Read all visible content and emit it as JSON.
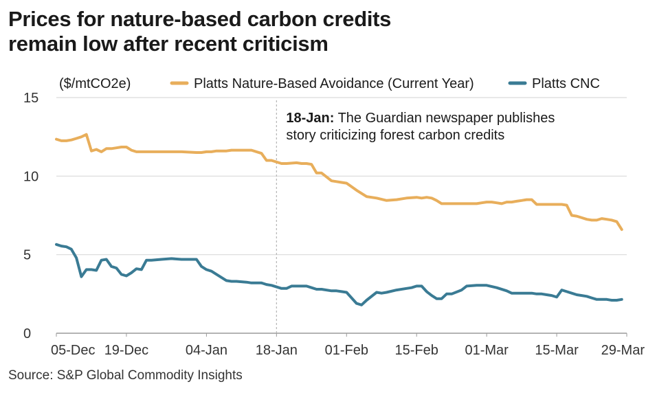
{
  "title_line1": "Prices for nature-based carbon credits",
  "title_line2": "remain low after recent criticism",
  "source": "Source: S&P Global Commodity Insights",
  "chart_data": {
    "type": "line",
    "unit_label": "($/mtCO2e)",
    "ylim": [
      0,
      15
    ],
    "yticks": [
      0,
      5,
      10,
      15
    ],
    "grid": true,
    "legend_position": "top",
    "x_start": "2022-12-05",
    "x_end": "2023-03-29",
    "xticks": [
      {
        "date": "2022-12-05",
        "label": "05-Dec"
      },
      {
        "date": "2022-12-19",
        "label": "19-Dec"
      },
      {
        "date": "2023-01-04",
        "label": "04-Jan"
      },
      {
        "date": "2023-01-18",
        "label": "18-Jan"
      },
      {
        "date": "2023-02-01",
        "label": "01-Feb"
      },
      {
        "date": "2023-02-15",
        "label": "15-Feb"
      },
      {
        "date": "2023-03-01",
        "label": "01-Mar"
      },
      {
        "date": "2023-03-15",
        "label": "15-Mar"
      },
      {
        "date": "2023-03-29",
        "label": "29-Mar"
      }
    ],
    "annotation": {
      "date": "2023-01-18",
      "bold": "18-Jan:",
      "text_line1": " The Guardian newspaper publishes",
      "text_line2": "story criticizing forest carbon credits"
    },
    "series": [
      {
        "name": "Platts Nature-Based Avoidance (Current Year)",
        "color": "#E8AE5B",
        "points": [
          [
            "2022-12-05",
            12.35
          ],
          [
            "2022-12-06",
            12.25
          ],
          [
            "2022-12-07",
            12.25
          ],
          [
            "2022-12-08",
            12.3
          ],
          [
            "2022-12-09",
            12.4
          ],
          [
            "2022-12-10",
            12.5
          ],
          [
            "2022-12-11",
            12.65
          ],
          [
            "2022-12-12",
            11.6
          ],
          [
            "2022-12-13",
            11.7
          ],
          [
            "2022-12-14",
            11.55
          ],
          [
            "2022-12-15",
            11.75
          ],
          [
            "2022-12-16",
            11.75
          ],
          [
            "2022-12-17",
            11.8
          ],
          [
            "2022-12-18",
            11.85
          ],
          [
            "2022-12-19",
            11.85
          ],
          [
            "2022-12-20",
            11.65
          ],
          [
            "2022-12-21",
            11.55
          ],
          [
            "2022-12-22",
            11.55
          ],
          [
            "2022-12-23",
            11.55
          ],
          [
            "2022-12-24",
            11.55
          ],
          [
            "2022-12-26",
            11.55
          ],
          [
            "2022-12-28",
            11.55
          ],
          [
            "2022-12-30",
            11.55
          ],
          [
            "2023-01-02",
            11.5
          ],
          [
            "2023-01-03",
            11.5
          ],
          [
            "2023-01-04",
            11.55
          ],
          [
            "2023-01-05",
            11.55
          ],
          [
            "2023-01-06",
            11.6
          ],
          [
            "2023-01-08",
            11.6
          ],
          [
            "2023-01-09",
            11.65
          ],
          [
            "2023-01-10",
            11.65
          ],
          [
            "2023-01-12",
            11.65
          ],
          [
            "2023-01-13",
            11.65
          ],
          [
            "2023-01-15",
            11.45
          ],
          [
            "2023-01-16",
            11.0
          ],
          [
            "2023-01-17",
            11.0
          ],
          [
            "2023-01-19",
            10.8
          ],
          [
            "2023-01-20",
            10.8
          ],
          [
            "2023-01-22",
            10.85
          ],
          [
            "2023-01-23",
            10.8
          ],
          [
            "2023-01-24",
            10.8
          ],
          [
            "2023-01-25",
            10.75
          ],
          [
            "2023-01-26",
            10.2
          ],
          [
            "2023-01-27",
            10.2
          ],
          [
            "2023-01-29",
            9.7
          ],
          [
            "2023-01-30",
            9.65
          ],
          [
            "2023-01-31",
            9.6
          ],
          [
            "2023-02-01",
            9.55
          ],
          [
            "2023-02-03",
            9.1
          ],
          [
            "2023-02-05",
            8.7
          ],
          [
            "2023-02-07",
            8.6
          ],
          [
            "2023-02-09",
            8.45
          ],
          [
            "2023-02-11",
            8.5
          ],
          [
            "2023-02-13",
            8.6
          ],
          [
            "2023-02-15",
            8.65
          ],
          [
            "2023-02-16",
            8.6
          ],
          [
            "2023-02-17",
            8.65
          ],
          [
            "2023-02-18",
            8.6
          ],
          [
            "2023-02-19",
            8.45
          ],
          [
            "2023-02-20",
            8.25
          ],
          [
            "2023-02-21",
            8.25
          ],
          [
            "2023-02-22",
            8.25
          ],
          [
            "2023-02-23",
            8.25
          ],
          [
            "2023-02-24",
            8.25
          ],
          [
            "2023-02-25",
            8.25
          ],
          [
            "2023-02-26",
            8.25
          ],
          [
            "2023-02-27",
            8.25
          ],
          [
            "2023-02-28",
            8.3
          ],
          [
            "2023-03-01",
            8.35
          ],
          [
            "2023-03-02",
            8.35
          ],
          [
            "2023-03-03",
            8.3
          ],
          [
            "2023-03-04",
            8.25
          ],
          [
            "2023-03-05",
            8.35
          ],
          [
            "2023-03-06",
            8.35
          ],
          [
            "2023-03-07",
            8.4
          ],
          [
            "2023-03-08",
            8.45
          ],
          [
            "2023-03-09",
            8.5
          ],
          [
            "2023-03-10",
            8.5
          ],
          [
            "2023-03-11",
            8.2
          ],
          [
            "2023-03-12",
            8.2
          ],
          [
            "2023-03-13",
            8.2
          ],
          [
            "2023-03-14",
            8.2
          ],
          [
            "2023-03-15",
            8.2
          ],
          [
            "2023-03-16",
            8.2
          ],
          [
            "2023-03-17",
            8.15
          ],
          [
            "2023-03-18",
            7.5
          ],
          [
            "2023-03-19",
            7.45
          ],
          [
            "2023-03-20",
            7.35
          ],
          [
            "2023-03-21",
            7.25
          ],
          [
            "2023-03-22",
            7.2
          ],
          [
            "2023-03-23",
            7.2
          ],
          [
            "2023-03-24",
            7.3
          ],
          [
            "2023-03-25",
            7.25
          ],
          [
            "2023-03-26",
            7.2
          ],
          [
            "2023-03-27",
            7.1
          ],
          [
            "2023-03-28",
            6.6
          ]
        ]
      },
      {
        "name": "Platts CNC",
        "color": "#3A7B94",
        "points": [
          [
            "2022-12-05",
            5.65
          ],
          [
            "2022-12-06",
            5.55
          ],
          [
            "2022-12-07",
            5.5
          ],
          [
            "2022-12-08",
            5.35
          ],
          [
            "2022-12-09",
            4.8
          ],
          [
            "2022-12-10",
            3.6
          ],
          [
            "2022-12-11",
            4.05
          ],
          [
            "2022-12-12",
            4.05
          ],
          [
            "2022-12-13",
            4.0
          ],
          [
            "2022-12-14",
            4.65
          ],
          [
            "2022-12-15",
            4.7
          ],
          [
            "2022-12-16",
            4.25
          ],
          [
            "2022-12-17",
            4.15
          ],
          [
            "2022-12-18",
            3.75
          ],
          [
            "2022-12-19",
            3.65
          ],
          [
            "2022-12-20",
            3.85
          ],
          [
            "2022-12-21",
            4.1
          ],
          [
            "2022-12-22",
            4.05
          ],
          [
            "2022-12-23",
            4.65
          ],
          [
            "2022-12-24",
            4.65
          ],
          [
            "2022-12-26",
            4.7
          ],
          [
            "2022-12-28",
            4.75
          ],
          [
            "2022-12-30",
            4.7
          ],
          [
            "2023-01-02",
            4.7
          ],
          [
            "2023-01-03",
            4.25
          ],
          [
            "2023-01-04",
            4.05
          ],
          [
            "2023-01-05",
            3.95
          ],
          [
            "2023-01-06",
            3.75
          ],
          [
            "2023-01-08",
            3.35
          ],
          [
            "2023-01-09",
            3.3
          ],
          [
            "2023-01-10",
            3.3
          ],
          [
            "2023-01-12",
            3.25
          ],
          [
            "2023-01-13",
            3.2
          ],
          [
            "2023-01-15",
            3.2
          ],
          [
            "2023-01-16",
            3.1
          ],
          [
            "2023-01-17",
            3.05
          ],
          [
            "2023-01-19",
            2.85
          ],
          [
            "2023-01-20",
            2.85
          ],
          [
            "2023-01-21",
            3.0
          ],
          [
            "2023-01-23",
            3.0
          ],
          [
            "2023-01-24",
            3.0
          ],
          [
            "2023-01-25",
            2.9
          ],
          [
            "2023-01-26",
            2.8
          ],
          [
            "2023-01-27",
            2.8
          ],
          [
            "2023-01-29",
            2.7
          ],
          [
            "2023-01-30",
            2.7
          ],
          [
            "2023-01-31",
            2.65
          ],
          [
            "2023-02-01",
            2.6
          ],
          [
            "2023-02-03",
            1.9
          ],
          [
            "2023-02-04",
            1.8
          ],
          [
            "2023-02-05",
            2.1
          ],
          [
            "2023-02-07",
            2.6
          ],
          [
            "2023-02-08",
            2.55
          ],
          [
            "2023-02-09",
            2.6
          ],
          [
            "2023-02-11",
            2.75
          ],
          [
            "2023-02-13",
            2.85
          ],
          [
            "2023-02-14",
            2.9
          ],
          [
            "2023-02-15",
            3.0
          ],
          [
            "2023-02-16",
            3.0
          ],
          [
            "2023-02-17",
            2.65
          ],
          [
            "2023-02-18",
            2.4
          ],
          [
            "2023-02-19",
            2.2
          ],
          [
            "2023-02-20",
            2.2
          ],
          [
            "2023-02-21",
            2.5
          ],
          [
            "2023-02-22",
            2.5
          ],
          [
            "2023-02-24",
            2.75
          ],
          [
            "2023-02-25",
            3.0
          ],
          [
            "2023-02-27",
            3.05
          ],
          [
            "2023-02-28",
            3.05
          ],
          [
            "2023-03-01",
            3.05
          ],
          [
            "2023-03-03",
            2.9
          ],
          [
            "2023-03-05",
            2.7
          ],
          [
            "2023-03-06",
            2.55
          ],
          [
            "2023-03-07",
            2.55
          ],
          [
            "2023-03-08",
            2.55
          ],
          [
            "2023-03-09",
            2.55
          ],
          [
            "2023-03-10",
            2.55
          ],
          [
            "2023-03-11",
            2.5
          ],
          [
            "2023-03-12",
            2.5
          ],
          [
            "2023-03-13",
            2.45
          ],
          [
            "2023-03-14",
            2.4
          ],
          [
            "2023-03-15",
            2.3
          ],
          [
            "2023-03-16",
            2.75
          ],
          [
            "2023-03-17",
            2.65
          ],
          [
            "2023-03-18",
            2.55
          ],
          [
            "2023-03-19",
            2.45
          ],
          [
            "2023-03-20",
            2.4
          ],
          [
            "2023-03-21",
            2.35
          ],
          [
            "2023-03-22",
            2.25
          ],
          [
            "2023-03-23",
            2.15
          ],
          [
            "2023-03-24",
            2.15
          ],
          [
            "2023-03-25",
            2.15
          ],
          [
            "2023-03-26",
            2.1
          ],
          [
            "2023-03-27",
            2.1
          ],
          [
            "2023-03-28",
            2.15
          ]
        ]
      }
    ]
  }
}
